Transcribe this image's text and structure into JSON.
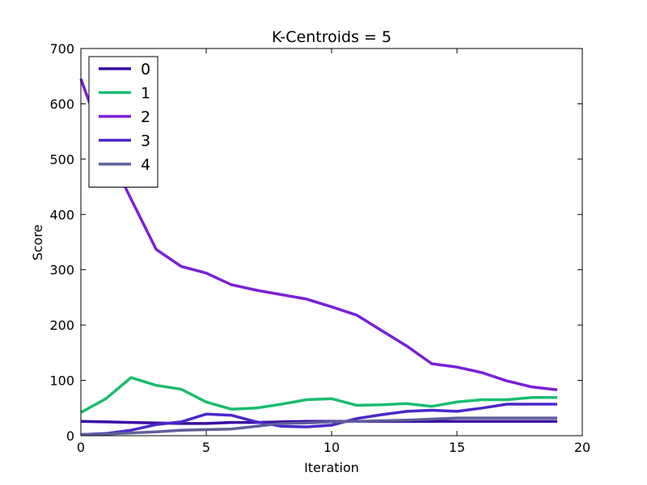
{
  "chart_data": {
    "type": "line",
    "title": "K-Centroids = 5",
    "xlabel": "Iteration",
    "ylabel": "Score",
    "xlim": [
      0,
      20
    ],
    "ylim": [
      0,
      700
    ],
    "xticks": [
      0,
      5,
      10,
      15,
      20
    ],
    "yticks": [
      0,
      100,
      200,
      300,
      400,
      500,
      600,
      700
    ],
    "grid": false,
    "legend_position": "top-left",
    "x": [
      0,
      1,
      2,
      3,
      4,
      5,
      6,
      7,
      8,
      9,
      10,
      11,
      12,
      13,
      14,
      15,
      16,
      17,
      18,
      19
    ],
    "series": [
      {
        "name": "0",
        "color": "#3a0ca3",
        "values": [
          26,
          25,
          24,
          23,
          22,
          22,
          24,
          24,
          25,
          26,
          26,
          26,
          26,
          26,
          26,
          26,
          26,
          26,
          26,
          26
        ]
      },
      {
        "name": "1",
        "color": "#1abc6f",
        "values": [
          42,
          67,
          105,
          91,
          84,
          61,
          48,
          50,
          57,
          65,
          67,
          55,
          56,
          58,
          53,
          61,
          65,
          65,
          69,
          69
        ]
      },
      {
        "name": "2",
        "color": "#7b1fd6",
        "values": [
          645,
          520,
          428,
          337,
          306,
          294,
          273,
          263,
          255,
          247,
          233,
          218,
          190,
          162,
          130,
          124,
          114,
          99,
          88,
          83
        ]
      },
      {
        "name": "3",
        "color": "#4a28c8",
        "values": [
          2,
          4,
          10,
          20,
          25,
          39,
          37,
          25,
          17,
          16,
          19,
          31,
          38,
          44,
          46,
          44,
          50,
          57,
          57,
          57
        ]
      },
      {
        "name": "4",
        "color": "#5f5f99",
        "values": [
          2,
          3,
          5,
          7,
          10,
          11,
          12,
          17,
          22,
          23,
          25,
          26,
          27,
          28,
          30,
          32,
          32,
          32,
          32,
          32
        ]
      }
    ]
  }
}
